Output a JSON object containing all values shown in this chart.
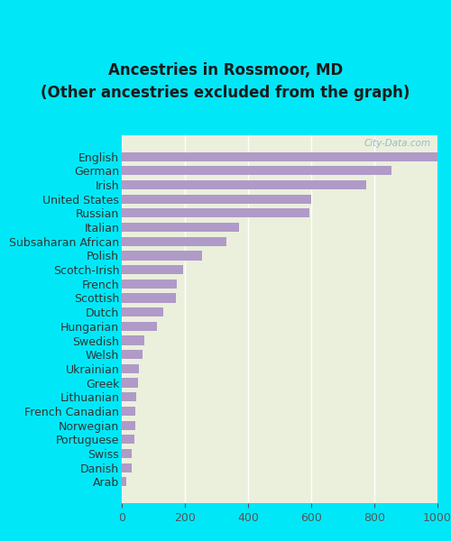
{
  "title": "Ancestries in Rossmoor, MD\n(Other ancestries excluded from the graph)",
  "categories": [
    "Arab",
    "Danish",
    "Swiss",
    "Portuguese",
    "Norwegian",
    "French Canadian",
    "Lithuanian",
    "Greek",
    "Ukrainian",
    "Welsh",
    "Swedish",
    "Hungarian",
    "Dutch",
    "Scottish",
    "French",
    "Scotch-Irish",
    "Polish",
    "Subsaharan African",
    "Italian",
    "Russian",
    "United States",
    "Irish",
    "German",
    "English"
  ],
  "values": [
    15,
    30,
    32,
    40,
    42,
    43,
    45,
    50,
    55,
    65,
    70,
    110,
    130,
    170,
    175,
    195,
    255,
    330,
    370,
    595,
    600,
    775,
    855,
    1000
  ],
  "bar_color": "#b09ac8",
  "background_color": "#eaf0dc",
  "outer_background": "#00e8f8",
  "xlim": [
    0,
    1000
  ],
  "xticks": [
    0,
    200,
    400,
    600,
    800,
    1000
  ],
  "title_fontsize": 12,
  "label_fontsize": 9,
  "tick_fontsize": 9,
  "watermark": "City-Data.com"
}
